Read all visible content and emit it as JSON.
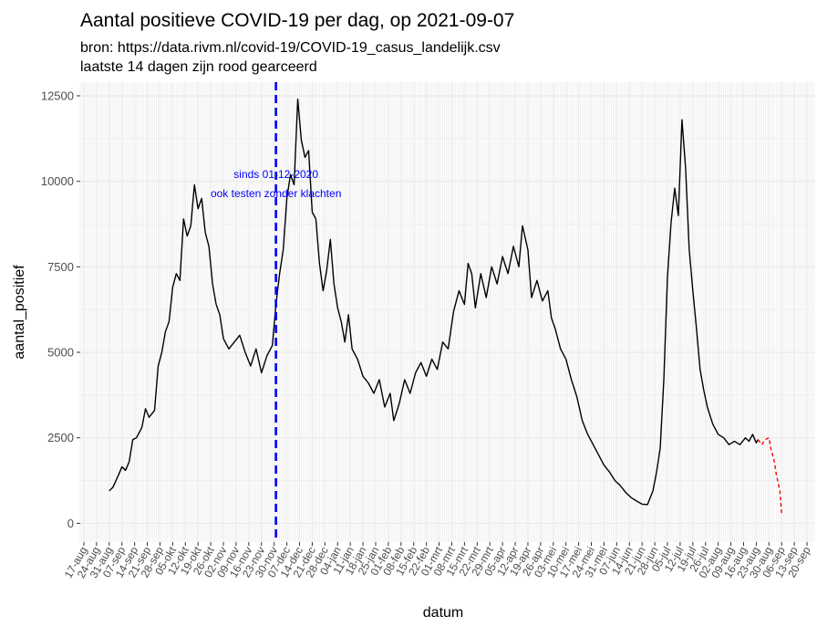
{
  "title": "Aantal positieve COVID-19 per dag, op 2021-09-07",
  "subtitle_line1": "bron: https://data.rivm.nl/covid-19/COVID-19_casus_landelijk.csv",
  "subtitle_line2": "laatste 14 dagen zijn rood gearceerd",
  "colors": {
    "line": "#000000",
    "last14": "#ff0000",
    "vline": "#0000ff",
    "annotation": "#0000ff",
    "grid": "#ebebeb",
    "background": "#ffffff"
  },
  "chart_data": {
    "type": "line",
    "title": "Aantal positieve COVID-19 per dag, op 2021-09-07",
    "xlabel": "datum",
    "ylabel": "aantal_positief",
    "ylim": [
      0,
      12500
    ],
    "yticks": [
      0,
      2500,
      5000,
      7500,
      10000,
      12500
    ],
    "xrange": [
      "2020-08-15",
      "2021-09-24"
    ],
    "grid": true,
    "xticks": [
      {
        "date": "2020-08-17",
        "label": "17-aug"
      },
      {
        "date": "2020-08-24",
        "label": "24-aug"
      },
      {
        "date": "2020-08-31",
        "label": "31-aug"
      },
      {
        "date": "2020-09-07",
        "label": "07-sep"
      },
      {
        "date": "2020-09-14",
        "label": "14-sep"
      },
      {
        "date": "2020-09-21",
        "label": "21-sep"
      },
      {
        "date": "2020-09-28",
        "label": "28-sep"
      },
      {
        "date": "2020-10-05",
        "label": "05-okt"
      },
      {
        "date": "2020-10-12",
        "label": "12-okt"
      },
      {
        "date": "2020-10-19",
        "label": "19-okt"
      },
      {
        "date": "2020-10-26",
        "label": "26-okt"
      },
      {
        "date": "2020-11-02",
        "label": "02-nov"
      },
      {
        "date": "2020-11-09",
        "label": "09-nov"
      },
      {
        "date": "2020-11-16",
        "label": "16-nov"
      },
      {
        "date": "2020-11-23",
        "label": "23-nov"
      },
      {
        "date": "2020-11-30",
        "label": "30-nov"
      },
      {
        "date": "2020-12-07",
        "label": "07-dec"
      },
      {
        "date": "2020-12-14",
        "label": "14-dec"
      },
      {
        "date": "2020-12-21",
        "label": "21-dec"
      },
      {
        "date": "2020-12-28",
        "label": "28-dec"
      },
      {
        "date": "2021-01-04",
        "label": "04-jan"
      },
      {
        "date": "2021-01-11",
        "label": "11-jan"
      },
      {
        "date": "2021-01-18",
        "label": "18-jan"
      },
      {
        "date": "2021-01-25",
        "label": "25-jan"
      },
      {
        "date": "2021-02-01",
        "label": "01-feb"
      },
      {
        "date": "2021-02-08",
        "label": "08-feb"
      },
      {
        "date": "2021-02-15",
        "label": "15-feb"
      },
      {
        "date": "2021-02-22",
        "label": "22-feb"
      },
      {
        "date": "2021-03-01",
        "label": "01-mrt"
      },
      {
        "date": "2021-03-08",
        "label": "08-mrt"
      },
      {
        "date": "2021-03-15",
        "label": "15-mrt"
      },
      {
        "date": "2021-03-22",
        "label": "22-mrt"
      },
      {
        "date": "2021-03-29",
        "label": "29-mrt"
      },
      {
        "date": "2021-04-05",
        "label": "05-apr"
      },
      {
        "date": "2021-04-12",
        "label": "12-apr"
      },
      {
        "date": "2021-04-19",
        "label": "19-apr"
      },
      {
        "date": "2021-04-26",
        "label": "26-apr"
      },
      {
        "date": "2021-05-03",
        "label": "03-mei"
      },
      {
        "date": "2021-05-10",
        "label": "10-mei"
      },
      {
        "date": "2021-05-17",
        "label": "17-mei"
      },
      {
        "date": "2021-05-24",
        "label": "24-mei"
      },
      {
        "date": "2021-05-31",
        "label": "31-mei"
      },
      {
        "date": "2021-06-07",
        "label": "07-jun"
      },
      {
        "date": "2021-06-14",
        "label": "14-jun"
      },
      {
        "date": "2021-06-21",
        "label": "21-jun"
      },
      {
        "date": "2021-06-28",
        "label": "28-jun"
      },
      {
        "date": "2021-07-05",
        "label": "05-jul"
      },
      {
        "date": "2021-07-12",
        "label": "12-jul"
      },
      {
        "date": "2021-07-19",
        "label": "19-jul"
      },
      {
        "date": "2021-07-26",
        "label": "26-jul"
      },
      {
        "date": "2021-08-02",
        "label": "02-aug"
      },
      {
        "date": "2021-08-09",
        "label": "09-aug"
      },
      {
        "date": "2021-08-16",
        "label": "16-aug"
      },
      {
        "date": "2021-08-23",
        "label": "23-aug"
      },
      {
        "date": "2021-08-30",
        "label": "30-aug"
      },
      {
        "date": "2021-09-06",
        "label": "06-sep"
      },
      {
        "date": "2021-09-13",
        "label": "13-sep"
      },
      {
        "date": "2021-09-20",
        "label": "20-sep"
      }
    ],
    "vline": {
      "date": "2020-12-01",
      "style": "dashed"
    },
    "annotation": {
      "date": "2020-12-01",
      "line1": "sinds 01-12-2020",
      "line2": "ook testen zonder klachten",
      "y1": 10200,
      "y2": 9650
    },
    "series": [
      {
        "style": "solid",
        "points": [
          [
            "2020-08-31",
            950
          ],
          [
            "2020-09-02",
            1050
          ],
          [
            "2020-09-05",
            1400
          ],
          [
            "2020-09-07",
            1650
          ],
          [
            "2020-09-09",
            1550
          ],
          [
            "2020-09-11",
            1800
          ],
          [
            "2020-09-13",
            2450
          ],
          [
            "2020-09-15",
            2500
          ],
          [
            "2020-09-18",
            2800
          ],
          [
            "2020-09-20",
            3350
          ],
          [
            "2020-09-22",
            3100
          ],
          [
            "2020-09-25",
            3300
          ],
          [
            "2020-09-27",
            4600
          ],
          [
            "2020-09-29",
            5000
          ],
          [
            "2020-10-01",
            5600
          ],
          [
            "2020-10-03",
            5900
          ],
          [
            "2020-10-05",
            6900
          ],
          [
            "2020-10-07",
            7300
          ],
          [
            "2020-10-09",
            7100
          ],
          [
            "2020-10-11",
            8900
          ],
          [
            "2020-10-13",
            8400
          ],
          [
            "2020-10-15",
            8700
          ],
          [
            "2020-10-17",
            9900
          ],
          [
            "2020-10-19",
            9200
          ],
          [
            "2020-10-21",
            9500
          ],
          [
            "2020-10-23",
            8500
          ],
          [
            "2020-10-25",
            8100
          ],
          [
            "2020-10-27",
            7000
          ],
          [
            "2020-10-29",
            6400
          ],
          [
            "2020-10-31",
            6100
          ],
          [
            "2020-11-02",
            5400
          ],
          [
            "2020-11-05",
            5100
          ],
          [
            "2020-11-08",
            5300
          ],
          [
            "2020-11-11",
            5500
          ],
          [
            "2020-11-14",
            5000
          ],
          [
            "2020-11-17",
            4600
          ],
          [
            "2020-11-20",
            5100
          ],
          [
            "2020-11-23",
            4400
          ],
          [
            "2020-11-26",
            4900
          ],
          [
            "2020-11-29",
            5200
          ],
          [
            "2020-12-01",
            6400
          ],
          [
            "2020-12-03",
            7300
          ],
          [
            "2020-12-05",
            8000
          ],
          [
            "2020-12-07",
            9500
          ],
          [
            "2020-12-09",
            10200
          ],
          [
            "2020-12-11",
            9900
          ],
          [
            "2020-12-13",
            12400
          ],
          [
            "2020-12-15",
            11200
          ],
          [
            "2020-12-17",
            10700
          ],
          [
            "2020-12-19",
            10900
          ],
          [
            "2020-12-21",
            9100
          ],
          [
            "2020-12-23",
            8900
          ],
          [
            "2020-12-25",
            7600
          ],
          [
            "2020-12-27",
            6800
          ],
          [
            "2020-12-29",
            7400
          ],
          [
            "2020-12-31",
            8300
          ],
          [
            "2021-01-02",
            7000
          ],
          [
            "2021-01-04",
            6300
          ],
          [
            "2021-01-06",
            5900
          ],
          [
            "2021-01-08",
            5300
          ],
          [
            "2021-01-10",
            6100
          ],
          [
            "2021-01-12",
            5100
          ],
          [
            "2021-01-15",
            4800
          ],
          [
            "2021-01-18",
            4300
          ],
          [
            "2021-01-21",
            4100
          ],
          [
            "2021-01-24",
            3800
          ],
          [
            "2021-01-27",
            4200
          ],
          [
            "2021-01-30",
            3400
          ],
          [
            "2021-02-02",
            3800
          ],
          [
            "2021-02-04",
            3000
          ],
          [
            "2021-02-07",
            3500
          ],
          [
            "2021-02-10",
            4200
          ],
          [
            "2021-02-13",
            3800
          ],
          [
            "2021-02-16",
            4400
          ],
          [
            "2021-02-19",
            4700
          ],
          [
            "2021-02-22",
            4300
          ],
          [
            "2021-02-25",
            4800
          ],
          [
            "2021-02-28",
            4500
          ],
          [
            "2021-03-03",
            5300
          ],
          [
            "2021-03-06",
            5100
          ],
          [
            "2021-03-09",
            6200
          ],
          [
            "2021-03-12",
            6800
          ],
          [
            "2021-03-15",
            6400
          ],
          [
            "2021-03-17",
            7600
          ],
          [
            "2021-03-19",
            7300
          ],
          [
            "2021-03-21",
            6300
          ],
          [
            "2021-03-24",
            7300
          ],
          [
            "2021-03-27",
            6600
          ],
          [
            "2021-03-30",
            7500
          ],
          [
            "2021-04-02",
            7000
          ],
          [
            "2021-04-05",
            7800
          ],
          [
            "2021-04-08",
            7300
          ],
          [
            "2021-04-11",
            8100
          ],
          [
            "2021-04-14",
            7500
          ],
          [
            "2021-04-16",
            8700
          ],
          [
            "2021-04-19",
            8000
          ],
          [
            "2021-04-21",
            6600
          ],
          [
            "2021-04-24",
            7100
          ],
          [
            "2021-04-27",
            6500
          ],
          [
            "2021-04-30",
            6800
          ],
          [
            "2021-05-02",
            6000
          ],
          [
            "2021-05-04",
            5700
          ],
          [
            "2021-05-07",
            5100
          ],
          [
            "2021-05-10",
            4800
          ],
          [
            "2021-05-13",
            4200
          ],
          [
            "2021-05-16",
            3700
          ],
          [
            "2021-05-19",
            3000
          ],
          [
            "2021-05-22",
            2600
          ],
          [
            "2021-05-25",
            2300
          ],
          [
            "2021-05-28",
            2000
          ],
          [
            "2021-05-31",
            1700
          ],
          [
            "2021-06-03",
            1500
          ],
          [
            "2021-06-06",
            1250
          ],
          [
            "2021-06-09",
            1100
          ],
          [
            "2021-06-12",
            900
          ],
          [
            "2021-06-15",
            750
          ],
          [
            "2021-06-18",
            650
          ],
          [
            "2021-06-21",
            560
          ],
          [
            "2021-06-24",
            550
          ],
          [
            "2021-06-27",
            950
          ],
          [
            "2021-06-29",
            1500
          ],
          [
            "2021-07-01",
            2200
          ],
          [
            "2021-07-03",
            4200
          ],
          [
            "2021-07-05",
            7200
          ],
          [
            "2021-07-07",
            8800
          ],
          [
            "2021-07-09",
            9800
          ],
          [
            "2021-07-11",
            9000
          ],
          [
            "2021-07-13",
            11800
          ],
          [
            "2021-07-15",
            10400
          ],
          [
            "2021-07-17",
            8000
          ],
          [
            "2021-07-19",
            6800
          ],
          [
            "2021-07-21",
            5700
          ],
          [
            "2021-07-23",
            4500
          ],
          [
            "2021-07-25",
            3900
          ],
          [
            "2021-07-27",
            3400
          ],
          [
            "2021-07-30",
            2900
          ],
          [
            "2021-08-02",
            2600
          ],
          [
            "2021-08-05",
            2500
          ],
          [
            "2021-08-08",
            2300
          ],
          [
            "2021-08-11",
            2400
          ],
          [
            "2021-08-14",
            2300
          ],
          [
            "2021-08-17",
            2500
          ],
          [
            "2021-08-19",
            2400
          ],
          [
            "2021-08-21",
            2600
          ],
          [
            "2021-08-23",
            2350
          ],
          [
            "2021-08-24",
            2450
          ]
        ]
      },
      {
        "style": "dashed",
        "points": [
          [
            "2021-08-24",
            2450
          ],
          [
            "2021-08-26",
            2300
          ],
          [
            "2021-08-28",
            2450
          ],
          [
            "2021-08-30",
            2500
          ],
          [
            "2021-08-31",
            2200
          ],
          [
            "2021-09-02",
            1800
          ],
          [
            "2021-09-03",
            1450
          ],
          [
            "2021-09-04",
            1200
          ],
          [
            "2021-09-05",
            950
          ],
          [
            "2021-09-06",
            300
          ]
        ]
      }
    ]
  }
}
